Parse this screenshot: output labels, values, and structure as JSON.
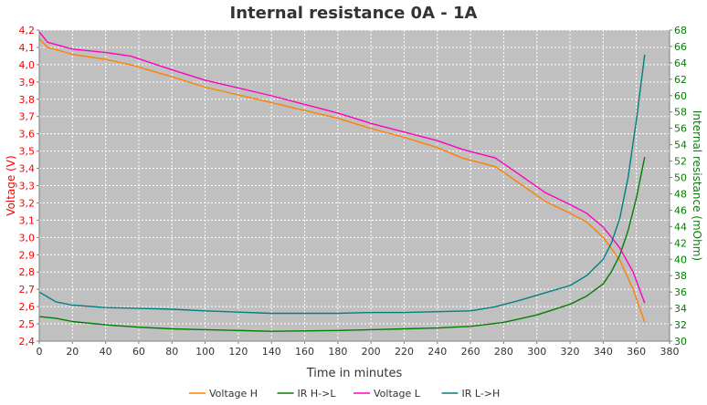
{
  "chart_data": {
    "type": "line",
    "title": "Internal resistance  0A - 1A",
    "xlabel": "Time in minutes",
    "ylabel_left": "Voltage (V)",
    "ylabel_right": "Internal resistance (mOhm)",
    "xlim": [
      0,
      380
    ],
    "ylim_left": [
      2.4,
      4.2
    ],
    "ylim_right": [
      30,
      68
    ],
    "x_ticks": [
      "0",
      "20",
      "40",
      "60",
      "80",
      "100",
      "120",
      "140",
      "160",
      "180",
      "200",
      "220",
      "240",
      "260",
      "280",
      "300",
      "320",
      "340",
      "360",
      "380"
    ],
    "y_left_ticks": [
      "2,4",
      "2,5",
      "2,6",
      "2,7",
      "2,8",
      "2,9",
      "3,0",
      "3,1",
      "3,2",
      "3,3",
      "3,4",
      "3,5",
      "3,6",
      "3,7",
      "3,8",
      "3,9",
      "4,0",
      "4,1",
      "4,2"
    ],
    "y_right_ticks": [
      "30",
      "32",
      "34",
      "36",
      "38",
      "40",
      "42",
      "44",
      "46",
      "48",
      "50",
      "52",
      "54",
      "56",
      "58",
      "60",
      "62",
      "64",
      "66",
      "68"
    ],
    "grid": true,
    "legend_position": "bottom",
    "colors": {
      "plot_background": "#c0c0c0",
      "grid": "#ffffff",
      "left_axis": "#ff0000",
      "right_axis": "#008000"
    },
    "series": [
      {
        "name": "Voltage H",
        "axis": "left",
        "color": "#ff8000",
        "x": [
          0,
          5,
          20,
          40,
          55,
          80,
          100,
          140,
          180,
          200,
          220,
          240,
          255,
          275,
          290,
          305,
          320,
          330,
          340,
          350,
          358,
          365
        ],
        "y": [
          4.15,
          4.1,
          4.06,
          4.03,
          4.0,
          3.93,
          3.87,
          3.78,
          3.69,
          3.63,
          3.58,
          3.52,
          3.46,
          3.41,
          3.31,
          3.21,
          3.14,
          3.09,
          3.0,
          2.87,
          2.7,
          2.51
        ]
      },
      {
        "name": "IR H->L",
        "axis": "right",
        "color": "#008000",
        "x": [
          0,
          10,
          20,
          40,
          60,
          80,
          100,
          140,
          180,
          200,
          220,
          240,
          260,
          280,
          300,
          320,
          330,
          340,
          345,
          350,
          355,
          360,
          365
        ],
        "y": [
          33.0,
          32.8,
          32.4,
          32.0,
          31.7,
          31.5,
          31.4,
          31.2,
          31.3,
          31.4,
          31.5,
          31.6,
          31.8,
          32.3,
          33.2,
          34.5,
          35.5,
          37.0,
          38.5,
          40.5,
          43.5,
          47.5,
          52.5
        ]
      },
      {
        "name": "Voltage L",
        "axis": "left",
        "color": "#ff00c0",
        "x": [
          0,
          5,
          20,
          40,
          55,
          80,
          100,
          140,
          180,
          200,
          220,
          240,
          255,
          275,
          290,
          305,
          320,
          330,
          340,
          350,
          358,
          365
        ],
        "y": [
          4.19,
          4.13,
          4.09,
          4.07,
          4.05,
          3.97,
          3.91,
          3.82,
          3.72,
          3.66,
          3.61,
          3.56,
          3.51,
          3.46,
          3.36,
          3.26,
          3.19,
          3.14,
          3.06,
          2.94,
          2.8,
          2.62
        ]
      },
      {
        "name": "IR L->H",
        "axis": "right",
        "color": "#008080",
        "x": [
          0,
          10,
          20,
          40,
          60,
          80,
          100,
          140,
          180,
          200,
          220,
          240,
          260,
          275,
          290,
          300,
          320,
          330,
          340,
          345,
          350,
          355,
          360,
          365
        ],
        "y": [
          36.0,
          34.8,
          34.4,
          34.1,
          34.0,
          33.9,
          33.7,
          33.4,
          33.4,
          33.5,
          33.5,
          33.6,
          33.7,
          34.2,
          35.0,
          35.6,
          36.8,
          38.0,
          40.0,
          42.0,
          45.0,
          50.0,
          57.0,
          65.0
        ]
      }
    ]
  }
}
